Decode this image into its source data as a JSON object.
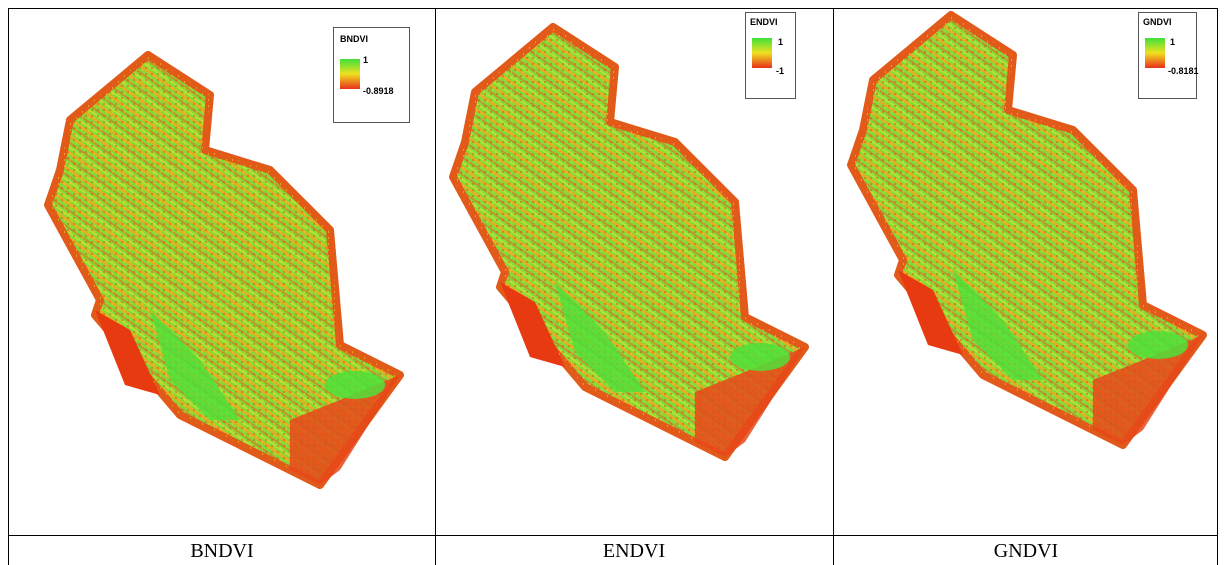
{
  "panels": [
    {
      "caption": "BNDVI",
      "legend": {
        "title": "BNDVI",
        "max": "1",
        "min": "-0.8918"
      }
    },
    {
      "caption": "ENDVI",
      "legend": {
        "title": "ENDVI",
        "max": "1",
        "min": "-1"
      }
    },
    {
      "caption": "GNDVI",
      "legend": {
        "title": "GNDVI",
        "max": "1",
        "min": "-0.8181"
      }
    }
  ]
}
